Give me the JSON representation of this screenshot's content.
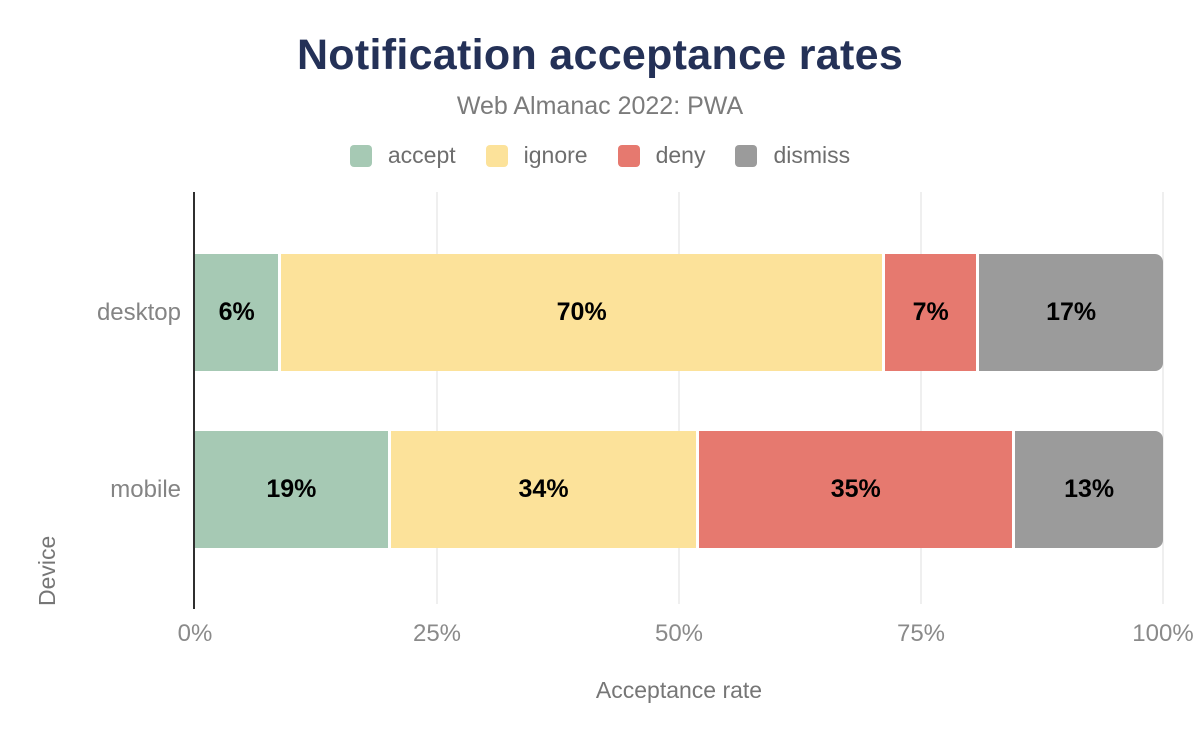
{
  "header": {
    "title": "Notification acceptance rates",
    "subtitle": "Web Almanac 2022: PWA"
  },
  "colors": {
    "title_navy": "#243157",
    "accept_green": "#a6c9b4",
    "ignore_yellow": "#fce29a",
    "deny_red": "#e6796f",
    "dismiss_gray": "#9b9b9b",
    "axis_line": "#2f2f2f",
    "gridline": "#efefef"
  },
  "legend": {
    "items": [
      {
        "label": "accept",
        "color": "#a6c9b4"
      },
      {
        "label": "ignore",
        "color": "#fce29a"
      },
      {
        "label": "deny",
        "color": "#e6796f"
      },
      {
        "label": "dismiss",
        "color": "#9b9b9b"
      }
    ]
  },
  "chart_data": {
    "type": "bar",
    "orientation": "horizontal",
    "stacked": true,
    "title": "Notification acceptance rates",
    "subtitle": "Web Almanac 2022: PWA",
    "xlabel": "Acceptance rate",
    "ylabel": "Device",
    "categories": [
      "desktop",
      "mobile"
    ],
    "series": [
      {
        "name": "accept",
        "color": "#a6c9b4",
        "values": [
          6,
          19
        ]
      },
      {
        "name": "ignore",
        "color": "#fce29a",
        "values": [
          70,
          34
        ]
      },
      {
        "name": "deny",
        "color": "#e6796f",
        "values": [
          7,
          35
        ]
      },
      {
        "name": "dismiss",
        "color": "#9b9b9b",
        "values": [
          17,
          13
        ]
      }
    ],
    "xlim": [
      0,
      100
    ],
    "xticks": [
      "0%",
      "25%",
      "50%",
      "75%",
      "100%"
    ],
    "grid": true,
    "legend_position": "top",
    "rows": [
      {
        "category": "desktop",
        "segments": [
          {
            "name": "accept",
            "label": "6%",
            "value": 6,
            "color": "#a6c9b4"
          },
          {
            "name": "ignore",
            "label": "70%",
            "value": 70,
            "color": "#fce29a"
          },
          {
            "name": "deny",
            "label": "7%",
            "value": 7,
            "color": "#e6796f"
          },
          {
            "name": "dismiss",
            "label": "17%",
            "value": 17,
            "color": "#9b9b9b"
          }
        ]
      },
      {
        "category": "mobile",
        "segments": [
          {
            "name": "accept",
            "label": "19%",
            "value": 19,
            "color": "#a6c9b4"
          },
          {
            "name": "ignore",
            "label": "34%",
            "value": 34,
            "color": "#fce29a"
          },
          {
            "name": "deny",
            "label": "35%",
            "value": 35,
            "color": "#e6796f"
          },
          {
            "name": "dismiss",
            "label": "13%",
            "value": 13,
            "color": "#9b9b9b"
          }
        ]
      }
    ]
  }
}
